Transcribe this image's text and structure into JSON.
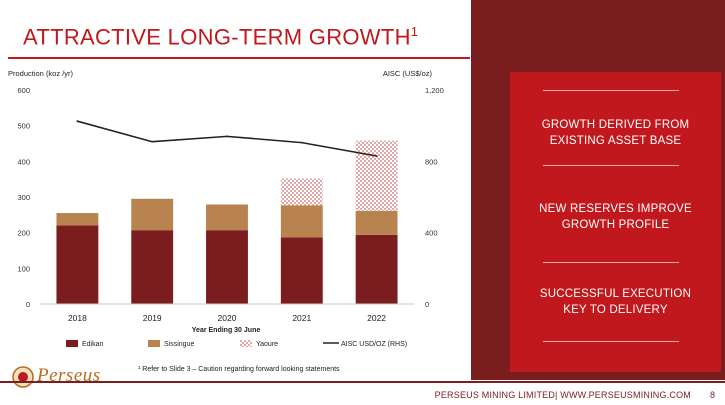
{
  "slide": {
    "title": "ATTRACTIVE LONG-TERM GROWTH",
    "title_superscript": "1",
    "footnote": "¹ Refer to Slide 3 – Caution regarding forward looking statements",
    "footer": "PERSEUS MINING LIMITED| WWW.PERSEUSMINING.COM",
    "page_number": "8",
    "logo_text": "Perseus"
  },
  "callouts": [
    {
      "line1": "GROWTH DERIVED FROM",
      "line2": "EXISTING ASSET BASE"
    },
    {
      "line1": "NEW RESERVES IMPROVE",
      "line2": "GROWTH PROFILE"
    },
    {
      "line1": "SUCCESSFUL EXECUTION",
      "line2": "KEY TO DELIVERY"
    }
  ],
  "colors": {
    "brand_red": "#c0181c",
    "dark_maroon": "#7a1d1f",
    "edikan": "#7b1d1e",
    "sissingue": "#b8834f",
    "yaoure": "#e8b4b4",
    "line": "#222222"
  },
  "chart_data": {
    "type": "bar",
    "stacked": true,
    "categories": [
      "2018",
      "2019",
      "2020",
      "2021",
      "2022"
    ],
    "series": [
      {
        "name": "Edikan",
        "values": [
          220,
          207,
          207,
          187,
          194
        ]
      },
      {
        "name": "Sissingue",
        "values": [
          35,
          88,
          72,
          90,
          67
        ]
      },
      {
        "name": "Yaoure",
        "values": [
          0,
          0,
          0,
          75,
          197
        ]
      }
    ],
    "line_series": {
      "name": "AISC USD/OZ (RHS)",
      "axis": "right",
      "values": [
        1025,
        910,
        940,
        905,
        830
      ]
    },
    "title": "",
    "xlabel": "Year Ending 30 June",
    "ylabel": "Production (koz /yr)",
    "y2label": "AISC (US$/oz)",
    "ylim": [
      0,
      600
    ],
    "y2lim": [
      0,
      1200
    ],
    "yticks": [
      "0",
      "100",
      "200",
      "300",
      "400",
      "500",
      "600"
    ],
    "y2ticks": [
      "0",
      "400",
      "800",
      "1,200"
    ],
    "grid": false,
    "legend": "bottom"
  }
}
